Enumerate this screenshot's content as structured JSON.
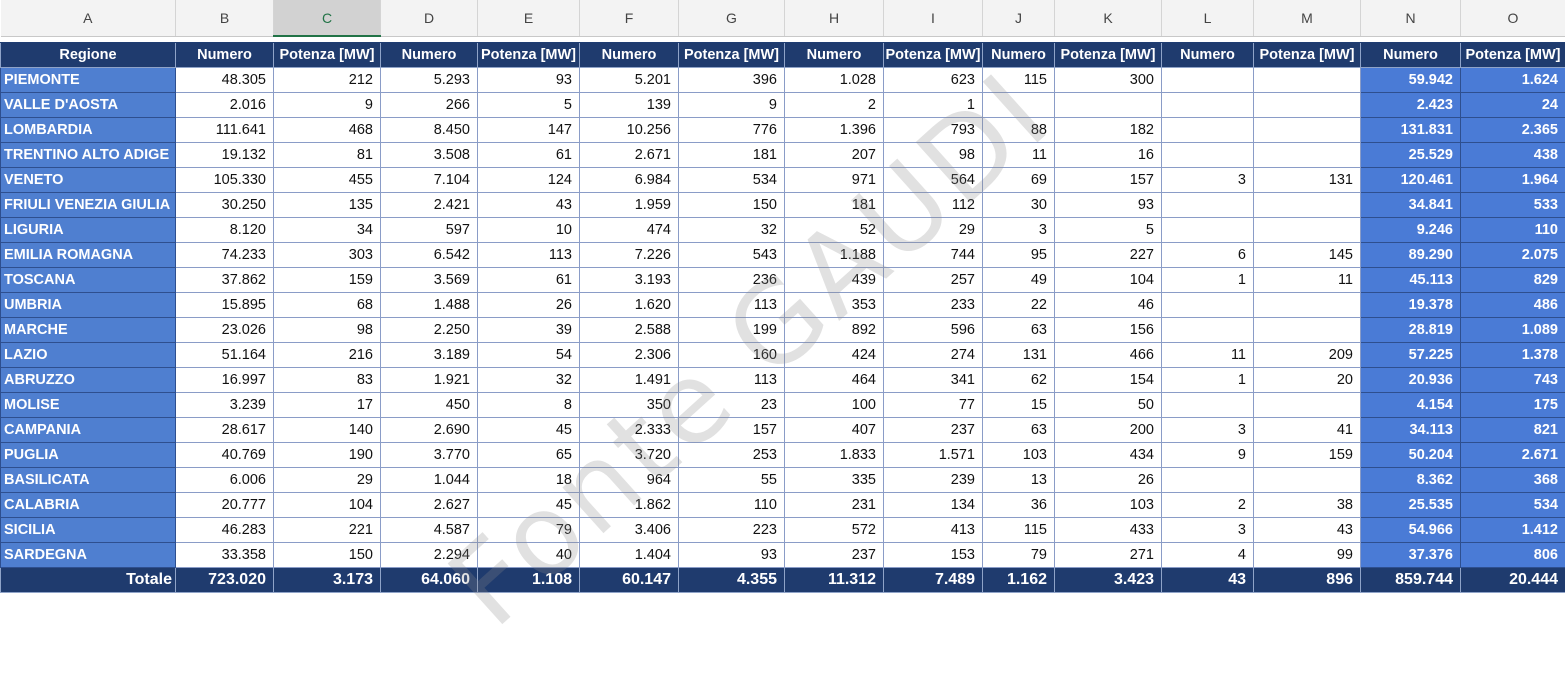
{
  "columns": [
    "A",
    "B",
    "C",
    "D",
    "E",
    "F",
    "G",
    "H",
    "I",
    "J",
    "K",
    "L",
    "M",
    "N",
    "O"
  ],
  "header": [
    "Regione",
    "Numero",
    "Potenza [MW]",
    "Numero",
    "Potenza [MW]",
    "Numero",
    "Potenza [MW]",
    "Numero",
    "Potenza [MW]",
    "Numero",
    "Potenza [MW]",
    "Numero",
    "Potenza [MW]",
    "Numero",
    "Potenza [MW]"
  ],
  "rows": [
    [
      "PIEMONTE",
      "48.305",
      "212",
      "5.293",
      "93",
      "5.201",
      "396",
      "1.028",
      "623",
      "115",
      "300",
      "",
      "",
      "59.942",
      "1.624"
    ],
    [
      "VALLE D'AOSTA",
      "2.016",
      "9",
      "266",
      "5",
      "139",
      "9",
      "2",
      "1",
      "",
      "",
      "",
      "",
      "2.423",
      "24"
    ],
    [
      "LOMBARDIA",
      "111.641",
      "468",
      "8.450",
      "147",
      "10.256",
      "776",
      "1.396",
      "793",
      "88",
      "182",
      "",
      "",
      "131.831",
      "2.365"
    ],
    [
      "TRENTINO ALTO ADIGE",
      "19.132",
      "81",
      "3.508",
      "61",
      "2.671",
      "181",
      "207",
      "98",
      "11",
      "16",
      "",
      "",
      "25.529",
      "438"
    ],
    [
      "VENETO",
      "105.330",
      "455",
      "7.104",
      "124",
      "6.984",
      "534",
      "971",
      "564",
      "69",
      "157",
      "3",
      "131",
      "120.461",
      "1.964"
    ],
    [
      "FRIULI VENEZIA GIULIA",
      "30.250",
      "135",
      "2.421",
      "43",
      "1.959",
      "150",
      "181",
      "112",
      "30",
      "93",
      "",
      "",
      "34.841",
      "533"
    ],
    [
      "LIGURIA",
      "8.120",
      "34",
      "597",
      "10",
      "474",
      "32",
      "52",
      "29",
      "3",
      "5",
      "",
      "",
      "9.246",
      "110"
    ],
    [
      "EMILIA ROMAGNA",
      "74.233",
      "303",
      "6.542",
      "113",
      "7.226",
      "543",
      "1.188",
      "744",
      "95",
      "227",
      "6",
      "145",
      "89.290",
      "2.075"
    ],
    [
      "TOSCANA",
      "37.862",
      "159",
      "3.569",
      "61",
      "3.193",
      "236",
      "439",
      "257",
      "49",
      "104",
      "1",
      "11",
      "45.113",
      "829"
    ],
    [
      "UMBRIA",
      "15.895",
      "68",
      "1.488",
      "26",
      "1.620",
      "113",
      "353",
      "233",
      "22",
      "46",
      "",
      "",
      "19.378",
      "486"
    ],
    [
      "MARCHE",
      "23.026",
      "98",
      "2.250",
      "39",
      "2.588",
      "199",
      "892",
      "596",
      "63",
      "156",
      "",
      "",
      "28.819",
      "1.089"
    ],
    [
      "LAZIO",
      "51.164",
      "216",
      "3.189",
      "54",
      "2.306",
      "160",
      "424",
      "274",
      "131",
      "466",
      "11",
      "209",
      "57.225",
      "1.378"
    ],
    [
      "ABRUZZO",
      "16.997",
      "83",
      "1.921",
      "32",
      "1.491",
      "113",
      "464",
      "341",
      "62",
      "154",
      "1",
      "20",
      "20.936",
      "743"
    ],
    [
      "MOLISE",
      "3.239",
      "17",
      "450",
      "8",
      "350",
      "23",
      "100",
      "77",
      "15",
      "50",
      "",
      "",
      "4.154",
      "175"
    ],
    [
      "CAMPANIA",
      "28.617",
      "140",
      "2.690",
      "45",
      "2.333",
      "157",
      "407",
      "237",
      "63",
      "200",
      "3",
      "41",
      "34.113",
      "821"
    ],
    [
      "PUGLIA",
      "40.769",
      "190",
      "3.770",
      "65",
      "3.720",
      "253",
      "1.833",
      "1.571",
      "103",
      "434",
      "9",
      "159",
      "50.204",
      "2.671"
    ],
    [
      "BASILICATA",
      "6.006",
      "29",
      "1.044",
      "18",
      "964",
      "55",
      "335",
      "239",
      "13",
      "26",
      "",
      "",
      "8.362",
      "368"
    ],
    [
      "CALABRIA",
      "20.777",
      "104",
      "2.627",
      "45",
      "1.862",
      "110",
      "231",
      "134",
      "36",
      "103",
      "2",
      "38",
      "25.535",
      "534"
    ],
    [
      "SICILIA",
      "46.283",
      "221",
      "4.587",
      "79",
      "3.406",
      "223",
      "572",
      "413",
      "115",
      "433",
      "3",
      "43",
      "54.966",
      "1.412"
    ],
    [
      "SARDEGNA",
      "33.358",
      "150",
      "2.294",
      "40",
      "1.404",
      "93",
      "237",
      "153",
      "79",
      "271",
      "4",
      "99",
      "37.376",
      "806"
    ]
  ],
  "totals": [
    "Totale",
    "723.020",
    "3.173",
    "64.060",
    "1.108",
    "60.147",
    "4.355",
    "11.312",
    "7.489",
    "1.162",
    "3.423",
    "43",
    "896",
    "859.744",
    "20.444"
  ],
  "watermark": "Fonte GAUDI",
  "selected_column": "C",
  "colors": {
    "header_navy": "#1f3b6e",
    "region_blue": "#4f7fd0",
    "total_blue": "#4a7bd6",
    "selection_green": "#217346"
  }
}
